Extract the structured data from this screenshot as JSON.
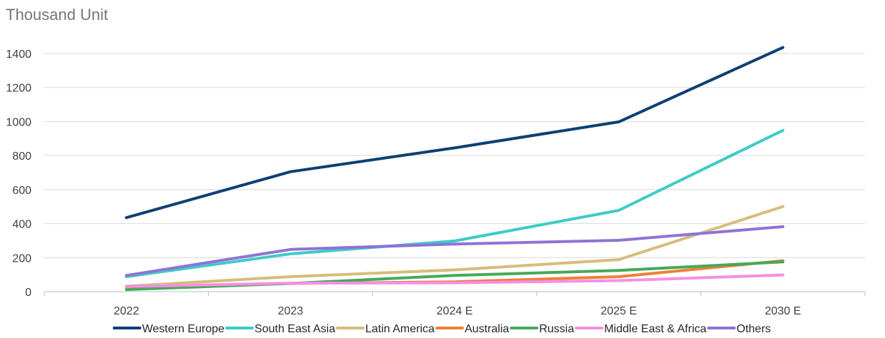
{
  "chart_data": {
    "type": "line",
    "unit_label": "Thousand Unit",
    "categories": [
      "2022",
      "2023",
      "2024 E",
      "2025 E",
      "2030 E"
    ],
    "yticks": [
      0,
      200,
      400,
      600,
      800,
      1000,
      1200,
      1400
    ],
    "ylim": [
      0,
      1500
    ],
    "grid": true,
    "legend_position": "bottom",
    "series": [
      {
        "name": "Western Europe",
        "color": "#0d3f74",
        "values": [
          435,
          705,
          845,
          998,
          1435
        ]
      },
      {
        "name": "South East Asia",
        "color": "#3ecbc8",
        "values": [
          88,
          222,
          298,
          478,
          948
        ]
      },
      {
        "name": "Latin America",
        "color": "#d6bd7a",
        "values": [
          32,
          88,
          128,
          188,
          500
        ]
      },
      {
        "name": "Australia",
        "color": "#ee8036",
        "values": [
          28,
          48,
          58,
          88,
          182
        ]
      },
      {
        "name": "Russia",
        "color": "#46a95a",
        "values": [
          12,
          48,
          95,
          125,
          175
        ]
      },
      {
        "name": "Middle East & Africa",
        "color": "#f58fe4",
        "values": [
          30,
          50,
          52,
          65,
          98
        ]
      },
      {
        "name": "Others",
        "color": "#8e73d6",
        "values": [
          95,
          248,
          280,
          302,
          382
        ]
      }
    ]
  }
}
